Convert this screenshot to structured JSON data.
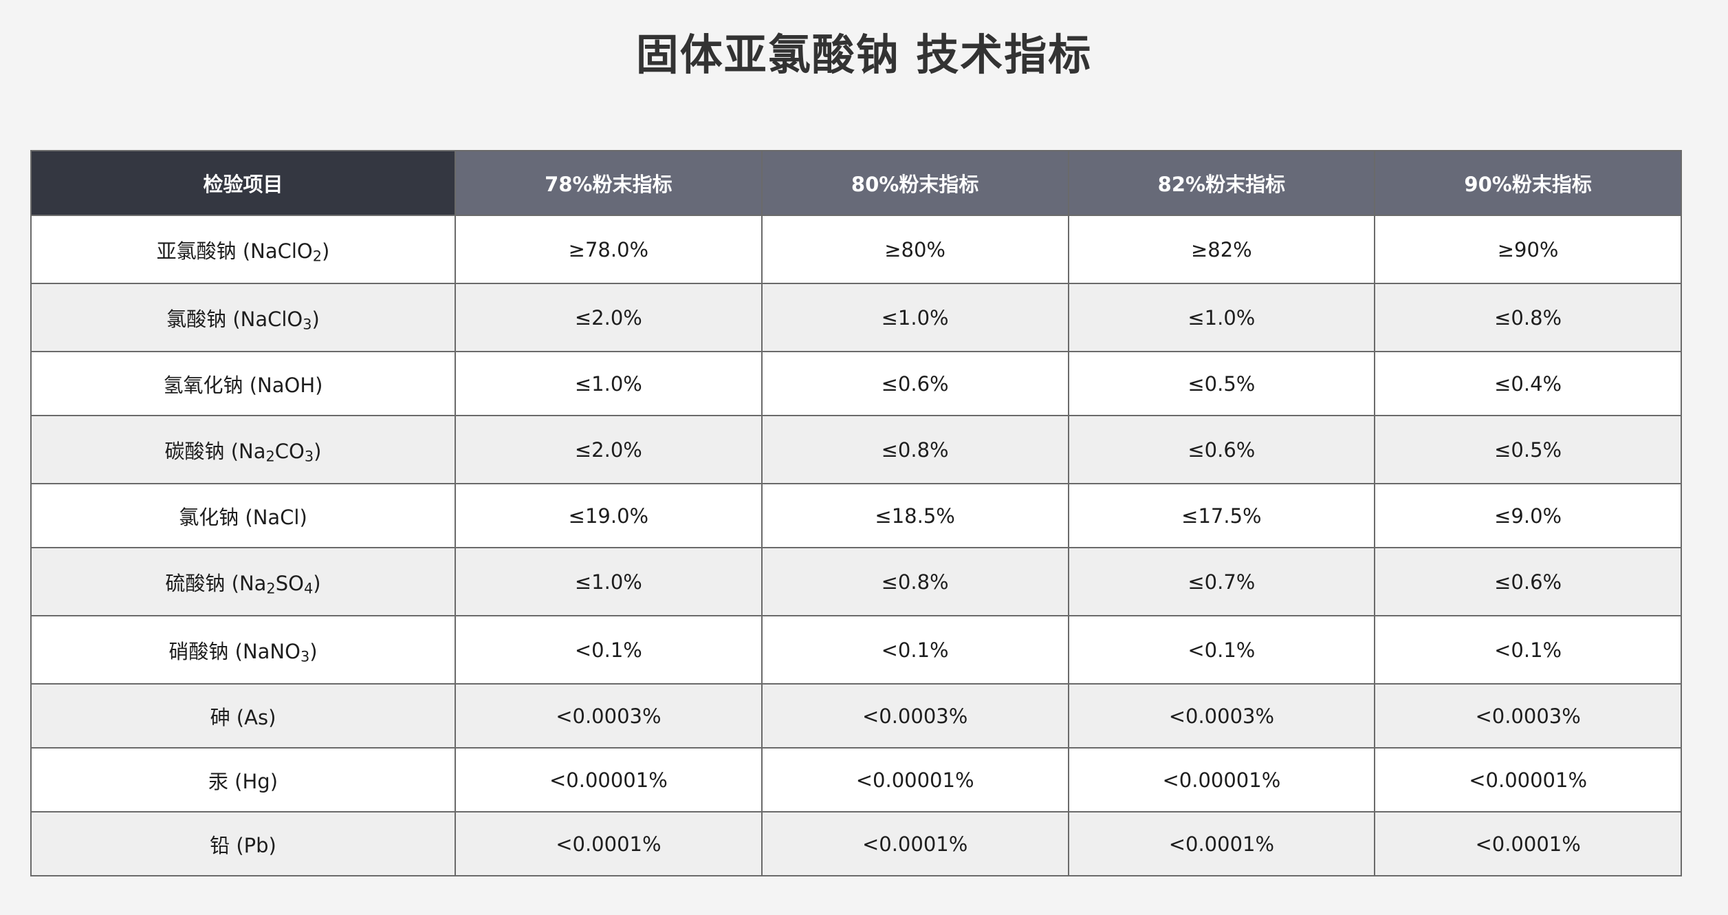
{
  "title": "固体亚氯酸钠 技术指标",
  "table": {
    "headers": [
      "检验项目",
      "78%粉末指标",
      "80%粉末指标",
      "82%粉末指标",
      "90%粉末指标"
    ],
    "rows": [
      {
        "name": "亚氯酸钠 (NaClO",
        "formula_sub": "2",
        "name_tail": ")",
        "values": [
          "≥78.0%",
          "≥80%",
          "≥82%",
          "≥90%"
        ]
      },
      {
        "name": "氯酸钠 (NaClO",
        "formula_sub": "3",
        "name_tail": ")",
        "values": [
          "≤2.0%",
          "≤1.0%",
          "≤1.0%",
          "≤0.8%"
        ]
      },
      {
        "name": "氢氧化钠 (NaOH)",
        "values": [
          "≤1.0%",
          "≤0.6%",
          "≤0.5%",
          "≤0.4%"
        ]
      },
      {
        "name": "碳酸钠 (Na",
        "formula_sub": "2",
        "name_mid": "CO",
        "formula_sub2": "3",
        "name_tail": ")",
        "values": [
          "≤2.0%",
          "≤0.8%",
          "≤0.6%",
          "≤0.5%"
        ]
      },
      {
        "name": "氯化钠 (NaCl)",
        "values": [
          "≤19.0%",
          "≤18.5%",
          "≤17.5%",
          "≤9.0%"
        ]
      },
      {
        "name": "硫酸钠 (Na",
        "formula_sub": "2",
        "name_mid": "SO",
        "formula_sub2": "4",
        "name_tail": ")",
        "values": [
          "≤1.0%",
          "≤0.8%",
          "≤0.7%",
          "≤0.6%"
        ]
      },
      {
        "name": "硝酸钠 (NaNO",
        "formula_sub": "3",
        "name_tail": ")",
        "values": [
          "<0.1%",
          "<0.1%",
          "<0.1%",
          "<0.1%"
        ]
      },
      {
        "name": "砷 (As)",
        "values": [
          "<0.0003%",
          "<0.0003%",
          "<0.0003%",
          "<0.0003%"
        ]
      },
      {
        "name": "汞 (Hg)",
        "values": [
          "<0.00001%",
          "<0.00001%",
          "<0.00001%",
          "<0.00001%"
        ]
      },
      {
        "name": "铅 (Pb)",
        "values": [
          "<0.0001%",
          "<0.0001%",
          "<0.0001%",
          "<0.0001%"
        ]
      }
    ]
  },
  "colors": {
    "page_background": "#f4f4f4",
    "header_first_cell": "#343741",
    "header_cells": "#676a78",
    "row_odd": "#ffffff",
    "row_even": "#efefef",
    "border": "#6a6a6a"
  }
}
